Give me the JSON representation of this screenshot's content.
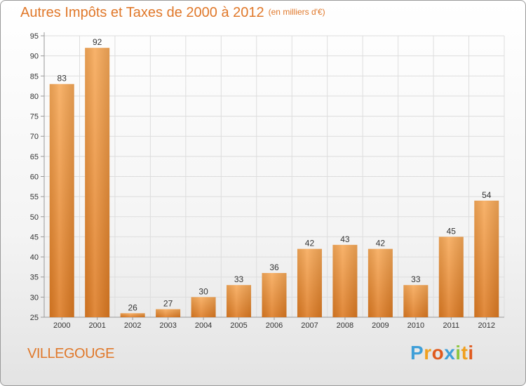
{
  "header": {
    "title": "Autres Impôts et Taxes de 2000 à 2012",
    "unit": "(en milliers d'€)"
  },
  "place_name": "VILLEGOUGE",
  "logo": {
    "text": "Proxiti",
    "letters": [
      {
        "ch": "P",
        "color": "#3f9fd8"
      },
      {
        "ch": "r",
        "color": "#f0a020"
      },
      {
        "ch": "o",
        "color": "#e05a1e"
      },
      {
        "ch": "x",
        "color": "#3f9fd8"
      },
      {
        "ch": "i",
        "color": "#8cc63f"
      },
      {
        "ch": "t",
        "color": "#f0a020"
      },
      {
        "ch": "i",
        "color": "#e05a1e"
      }
    ]
  },
  "colors": {
    "bar_light": "#f7a958",
    "bar_dark": "#dd7a22",
    "grid": "#dddddd",
    "axis": "#999999",
    "title": "#e0782a"
  },
  "chart_data": {
    "type": "bar",
    "title": "Autres Impôts et Taxes de 2000 à 2012",
    "subtitle": "(en milliers d'€)",
    "categories": [
      "2000",
      "2001",
      "2002",
      "2003",
      "2004",
      "2005",
      "2006",
      "2007",
      "2008",
      "2009",
      "2010",
      "2011",
      "2012"
    ],
    "values": [
      83,
      92,
      26,
      27,
      30,
      33,
      36,
      42,
      43,
      42,
      33,
      45,
      54
    ],
    "ylim": [
      25,
      95
    ],
    "yticks": [
      25,
      30,
      35,
      40,
      45,
      50,
      55,
      60,
      65,
      70,
      75,
      80,
      85,
      90,
      95
    ],
    "grid": true,
    "data_labels": true,
    "xlabel": "",
    "ylabel": ""
  }
}
